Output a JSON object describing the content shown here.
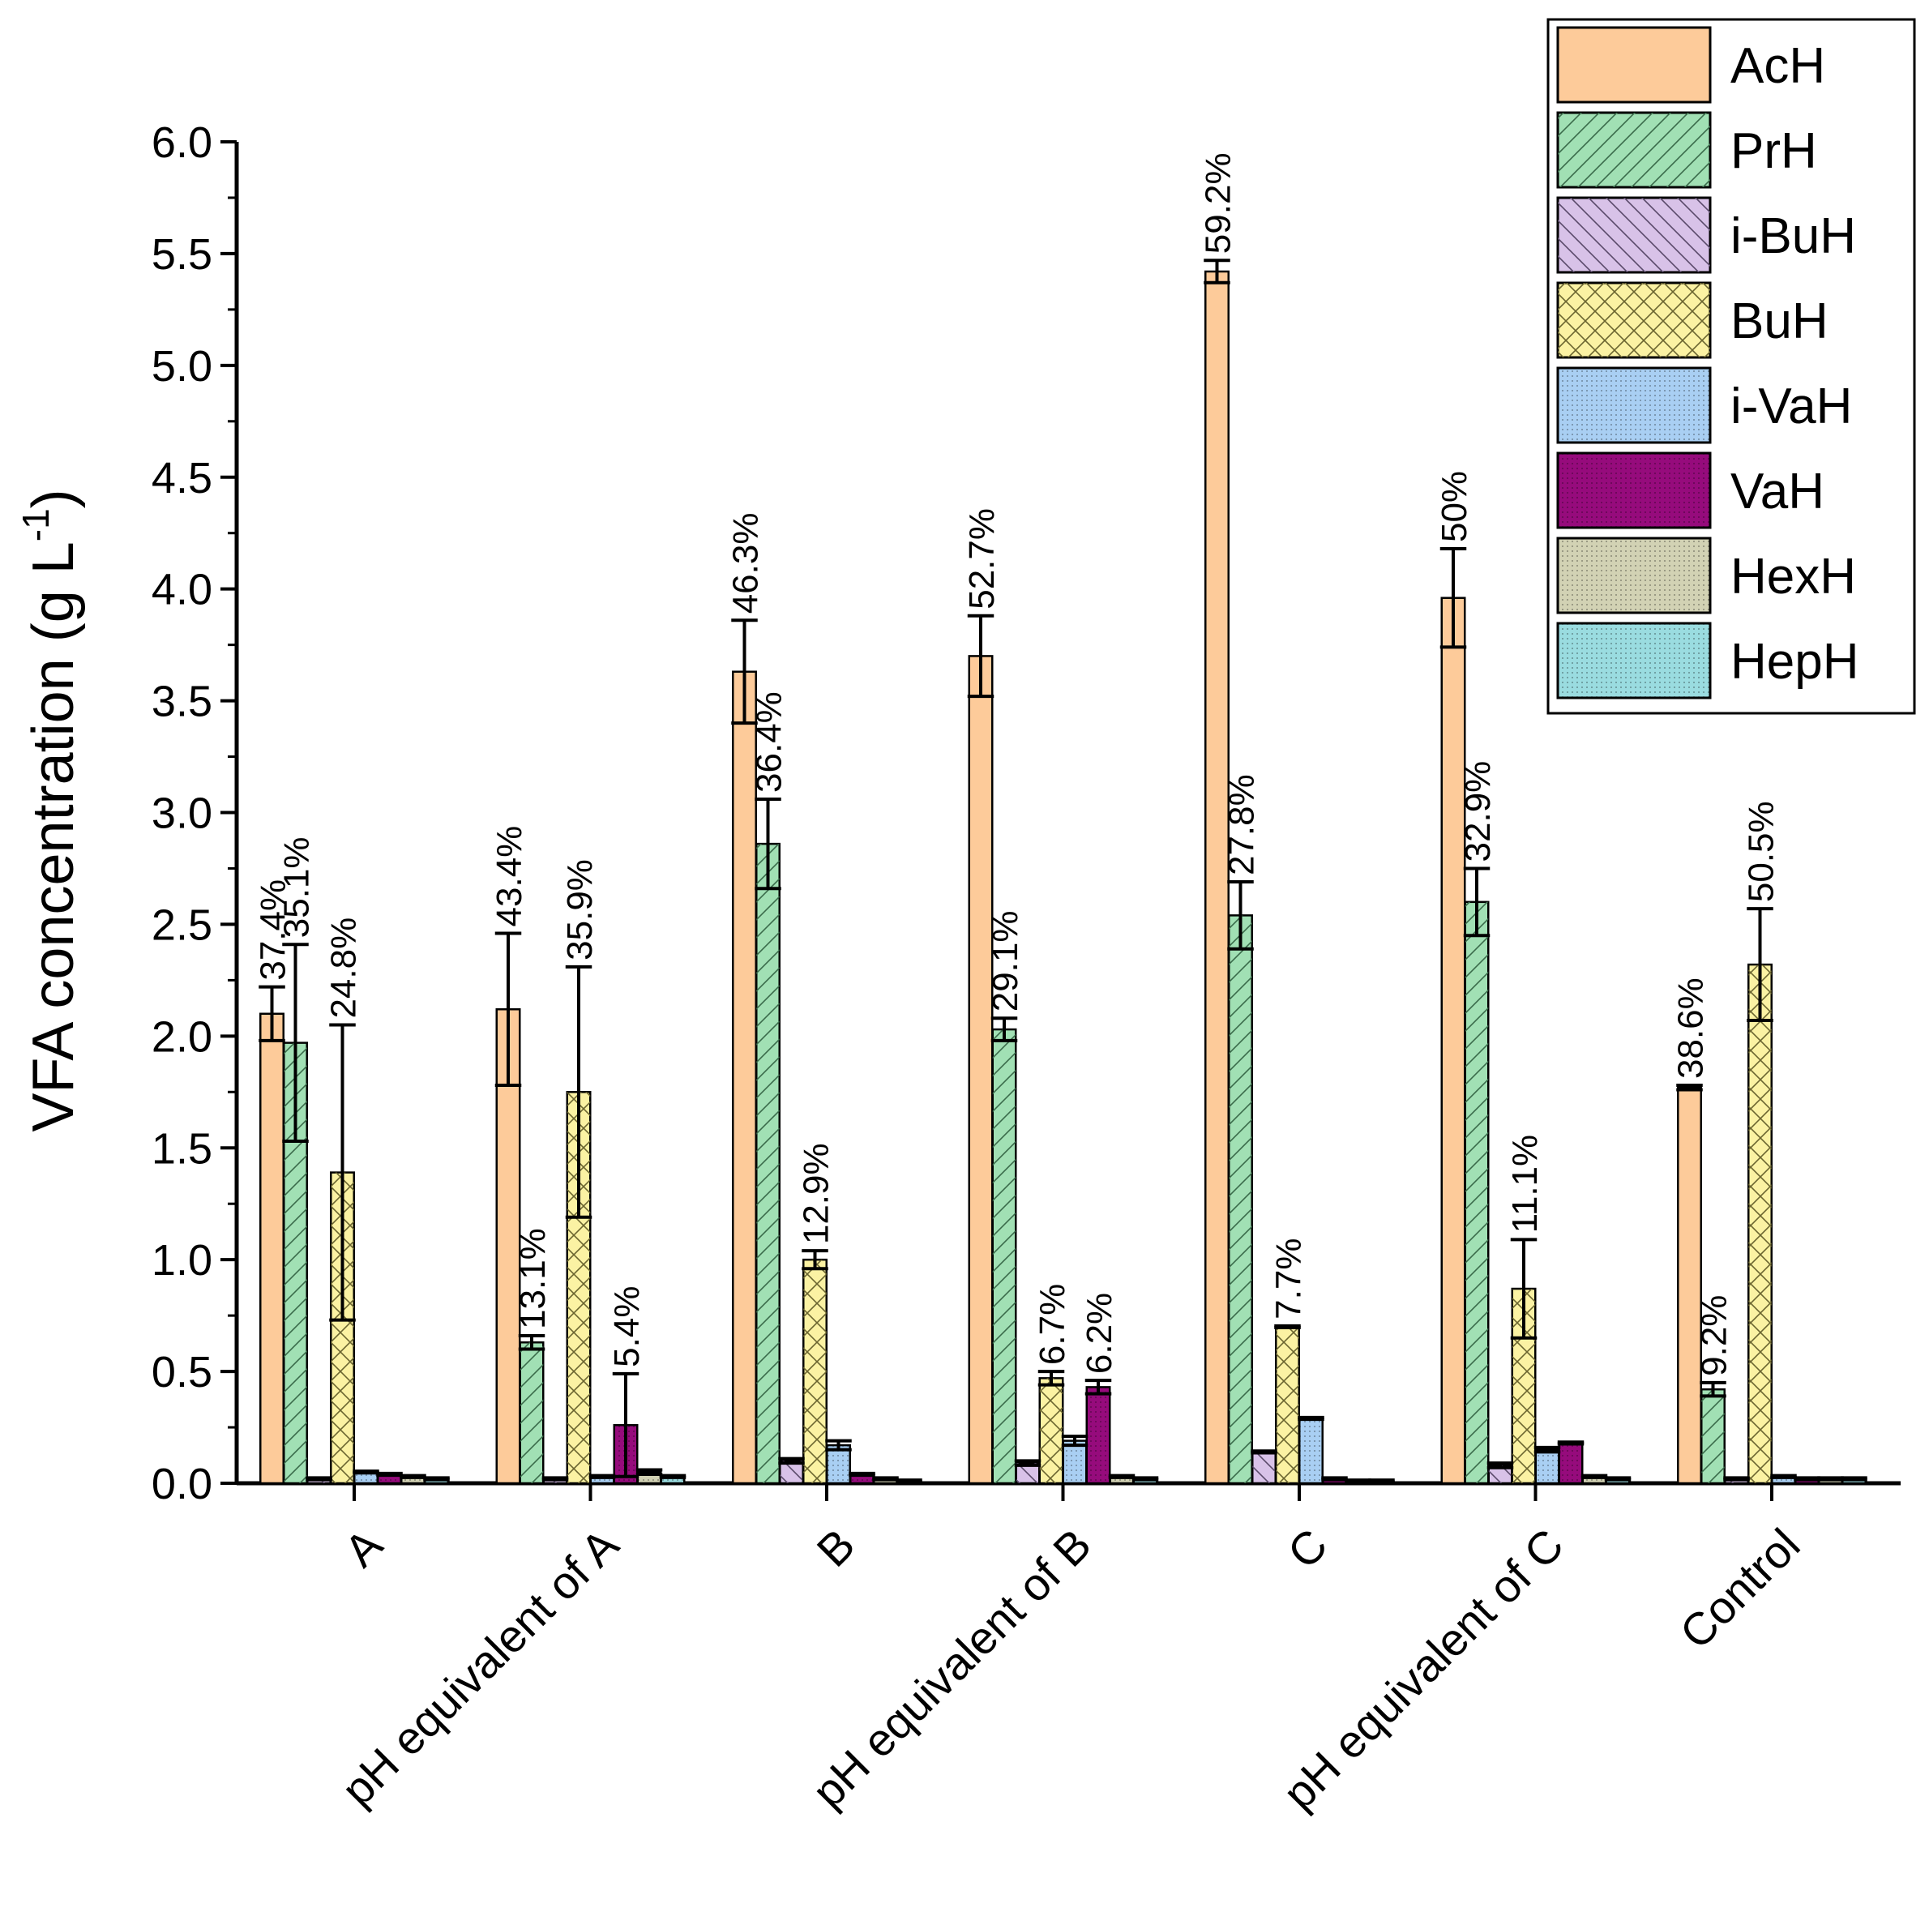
{
  "chart_data": {
    "type": "bar",
    "title": "",
    "xlabel": "",
    "ylabel": "VFA concentration (g L",
    "ylabel_superscript": "-1",
    "ylabel_close": ")",
    "ylim": [
      0,
      6.0
    ],
    "ytick_step": 0.5,
    "grid": false,
    "legend_position": "top-right",
    "categories": [
      "A",
      "pH equivalent of A",
      "B",
      "pH equivalent of B",
      "C",
      "pH equivalent of C",
      "Control"
    ],
    "series": [
      {
        "name": "AcH",
        "color": "#FDCB9A",
        "pattern": "none",
        "values": [
          2.1,
          2.12,
          3.63,
          3.7,
          5.42,
          3.96,
          1.77
        ],
        "errors": [
          0.12,
          0.34,
          0.23,
          0.18,
          0.05,
          0.22,
          0.01
        ],
        "labels": [
          "37.4%",
          "43.4%",
          "46.3%",
          "52.7%",
          "59.2%",
          "50%",
          "38.6%"
        ]
      },
      {
        "name": "PrH",
        "color": "#A1E0B4",
        "pattern": "fwd",
        "values": [
          1.97,
          0.63,
          2.86,
          2.03,
          2.54,
          2.6,
          0.42
        ],
        "errors": [
          0.44,
          0.03,
          0.2,
          0.05,
          0.15,
          0.15,
          0.03
        ],
        "labels": [
          "35.1%",
          "13.1%",
          "36.4%",
          "29.1%",
          "27.8%",
          "32.9%",
          "9.2%"
        ]
      },
      {
        "name": "i-BuH",
        "color": "#D8C2E8",
        "pattern": "back",
        "values": [
          0.02,
          0.02,
          0.1,
          0.09,
          0.14,
          0.08,
          0.02
        ],
        "errors": [
          0.004,
          0.004,
          0.01,
          0.01,
          0.004,
          0.01,
          0.004
        ],
        "labels": [
          "",
          "",
          "",
          "",
          "",
          "",
          ""
        ]
      },
      {
        "name": "BuH",
        "color": "#FBF2A3",
        "pattern": "cross",
        "values": [
          1.39,
          1.75,
          1.0,
          0.47,
          0.7,
          0.87,
          2.32
        ],
        "errors": [
          0.66,
          0.56,
          0.04,
          0.03,
          0.004,
          0.22,
          0.25
        ],
        "labels": [
          "24.8%",
          "35.9%",
          "12.9%",
          "6.7%",
          "7.7%",
          "11.1%",
          "50.5%"
        ]
      },
      {
        "name": "i-VaH",
        "color": "#A9CFF3",
        "pattern": "dots",
        "values": [
          0.05,
          0.03,
          0.17,
          0.19,
          0.29,
          0.15,
          0.03
        ],
        "errors": [
          0.004,
          0.004,
          0.02,
          0.02,
          0.004,
          0.01,
          0.004
        ],
        "labels": [
          "",
          "",
          "",
          "",
          "",
          "",
          ""
        ]
      },
      {
        "name": "VaH",
        "color": "#960B7C",
        "pattern": "dots",
        "values": [
          0.04,
          0.26,
          0.04,
          0.43,
          0.02,
          0.18,
          0.02
        ],
        "errors": [
          0.004,
          0.23,
          0.004,
          0.03,
          0.004,
          0.004,
          0.004
        ],
        "labels": [
          "",
          "5.4%",
          "",
          "6.2%",
          "",
          "",
          ""
        ]
      },
      {
        "name": "HexH",
        "color": "#D2D2B4",
        "pattern": "dots",
        "values": [
          0.03,
          0.05,
          0.02,
          0.03,
          0.01,
          0.03,
          0.02
        ],
        "errors": [
          0.004,
          0.01,
          0.004,
          0.004,
          0.004,
          0.004,
          0.004
        ],
        "labels": [
          "",
          "",
          "",
          "",
          "",
          "",
          ""
        ]
      },
      {
        "name": "HepH",
        "color": "#9ADCE0",
        "pattern": "dots",
        "values": [
          0.02,
          0.03,
          0.01,
          0.02,
          0.01,
          0.02,
          0.02
        ],
        "errors": [
          0.004,
          0.004,
          0.004,
          0.004,
          0.004,
          0.004,
          0.004
        ],
        "labels": [
          "",
          "",
          "",
          "",
          "",
          "",
          ""
        ]
      }
    ]
  }
}
